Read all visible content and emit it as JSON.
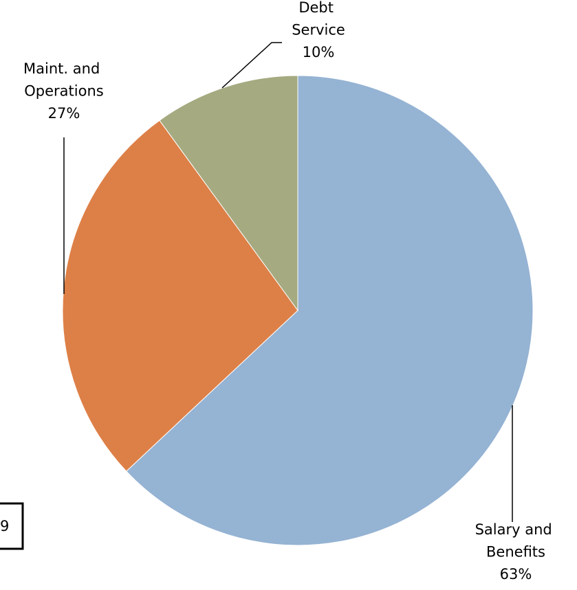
{
  "chart_data": {
    "type": "pie",
    "categories": [
      "Salary and Benefits",
      "Maint. and Operations",
      "Debt Service"
    ],
    "values": [
      63,
      27,
      10
    ],
    "value_labels": [
      "63%",
      "27%",
      "10%"
    ],
    "colors": [
      "#95b3d3",
      "#dd8047",
      "#a5aa80"
    ]
  },
  "page_number": "9"
}
